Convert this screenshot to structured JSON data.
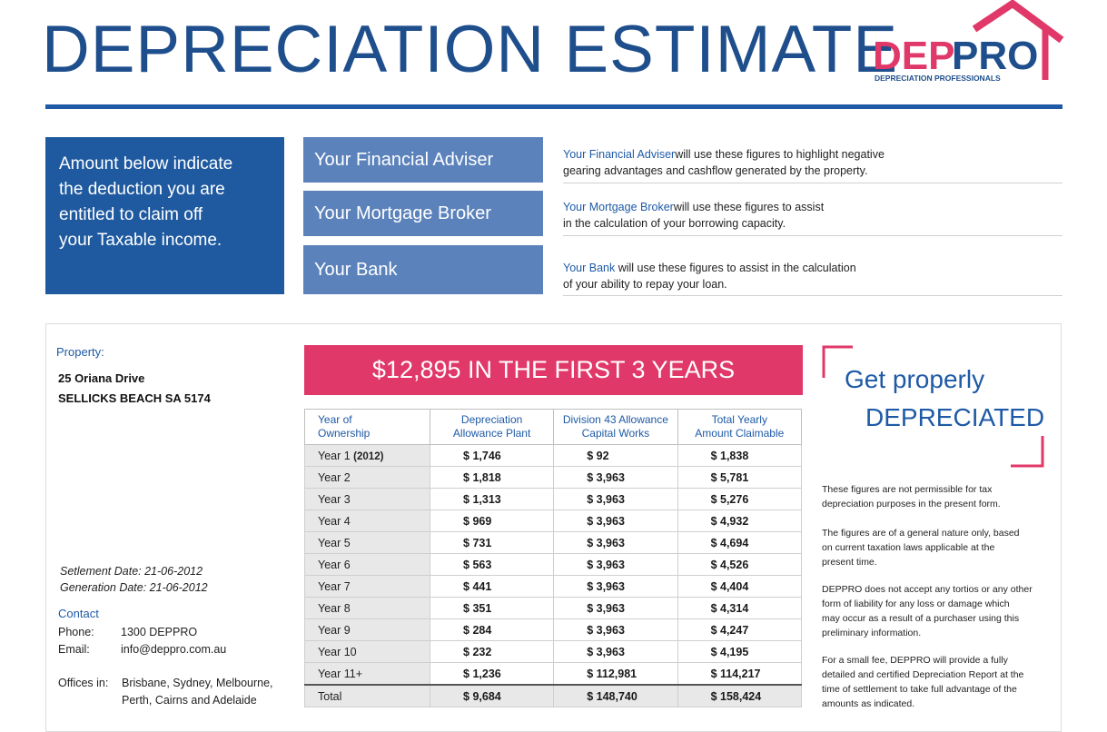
{
  "header": {
    "title": "DEPRECIATION ESTIMATE",
    "logo": {
      "brand_dep": "DEP",
      "brand_pro": "PRO",
      "tagline": "DEPRECIATION PROFESSIONALS"
    },
    "colors": {
      "primary_blue": "#1e4e8c",
      "accent_pink": "#e03868",
      "mid_blue": "#5b82bb"
    }
  },
  "intro": {
    "lines": [
      "Amount below indicate",
      "the deduction you are",
      "entitled to claim off",
      "your Taxable income."
    ]
  },
  "roles": [
    {
      "label": "Your Financial Adviser",
      "highlight": "Your Financial Adviser",
      "line1": "will use these figures to highlight negative",
      "line2": "gearing advantages and cashflow generated by the property."
    },
    {
      "label": "Your Mortgage Broker",
      "highlight": "Your Mortgage Broker",
      "line1": "will use these figures to assist",
      "line2": "in the calculation of your borrowing capacity."
    },
    {
      "label": "Your Bank",
      "highlight": "Your Bank",
      "line1": " will use these figures to assist in the calculation",
      "line2": "of your ability to repay your loan."
    }
  ],
  "property": {
    "label": "Property:",
    "address1": "25 Oriana Drive",
    "address2": "SELLICKS BEACH SA 5174",
    "settlement": "Setlement Date: 21-06-2012",
    "generation": "Generation Date: 21-06-2012"
  },
  "contact": {
    "label": "Contact",
    "phone_label": "Phone:",
    "phone": "1300 DEPPRO",
    "email_label": "Email:",
    "email": "info@deppro.com.au",
    "offices_label": "Offices in:",
    "offices1": "Brisbane, Sydney, Melbourne,",
    "offices2": "Perth, Cairns and Adelaide"
  },
  "banner": "$12,895 IN THE FIRST 3 YEARS",
  "table": {
    "headers": [
      [
        "Year of",
        "Ownership"
      ],
      [
        "Depreciation",
        "Allowance Plant"
      ],
      [
        "Division 43 Allowance",
        "Capital Works"
      ],
      [
        "Total Yearly",
        "Amount Claimable"
      ]
    ],
    "rows": [
      {
        "year": "Year 1",
        "note": "(2012)",
        "plant": "$ 1,746",
        "capital": "$ 92",
        "total": "$ 1,838"
      },
      {
        "year": "Year 2",
        "note": "",
        "plant": "$ 1,818",
        "capital": "$ 3,963",
        "total": "$ 5,781"
      },
      {
        "year": "Year 3",
        "note": "",
        "plant": "$ 1,313",
        "capital": "$ 3,963",
        "total": "$ 5,276"
      },
      {
        "year": "Year 4",
        "note": "",
        "plant": "$ 969",
        "capital": "$ 3,963",
        "total": "$ 4,932"
      },
      {
        "year": "Year 5",
        "note": "",
        "plant": "$ 731",
        "capital": "$ 3,963",
        "total": "$ 4,694"
      },
      {
        "year": "Year 6",
        "note": "",
        "plant": "$ 563",
        "capital": "$ 3,963",
        "total": "$ 4,526"
      },
      {
        "year": "Year 7",
        "note": "",
        "plant": "$ 441",
        "capital": "$ 3,963",
        "total": "$ 4,404"
      },
      {
        "year": "Year 8",
        "note": "",
        "plant": "$ 351",
        "capital": "$ 3,963",
        "total": "$ 4,314"
      },
      {
        "year": "Year 9",
        "note": "",
        "plant": "$ 284",
        "capital": "$ 3,963",
        "total": "$ 4,247"
      },
      {
        "year": "Year 10",
        "note": "",
        "plant": "$ 232",
        "capital": "$ 3,963",
        "total": "$ 4,195"
      },
      {
        "year": "Year 11+",
        "note": "",
        "plant": "$ 1,236",
        "capital": "$ 112,981",
        "total": "$ 114,217"
      }
    ],
    "total": {
      "year": "Total",
      "plant": "$ 9,684",
      "capital": "$ 148,740",
      "total": "$ 158,424"
    }
  },
  "cta": {
    "line1": "Get properly",
    "line2": "DEPRECIATED"
  },
  "disclaimers": [
    [
      "These figures are not permissible for tax",
      "depreciation purposes in the present form."
    ],
    [
      "The figures are of a general nature only, based",
      "on current taxation laws applicable at the",
      "present time."
    ],
    [
      "DEPPRO does not accept any tortios or any other",
      "form of liability for any loss or damage which",
      "may occur as a result of a purchaser using this",
      "preliminary information."
    ],
    [
      "For a small fee, DEPPRO will provide a fully",
      "detailed and certified Depreciation Report at the",
      "time of settlement to take full advantage of the",
      "amounts as indicated."
    ]
  ]
}
